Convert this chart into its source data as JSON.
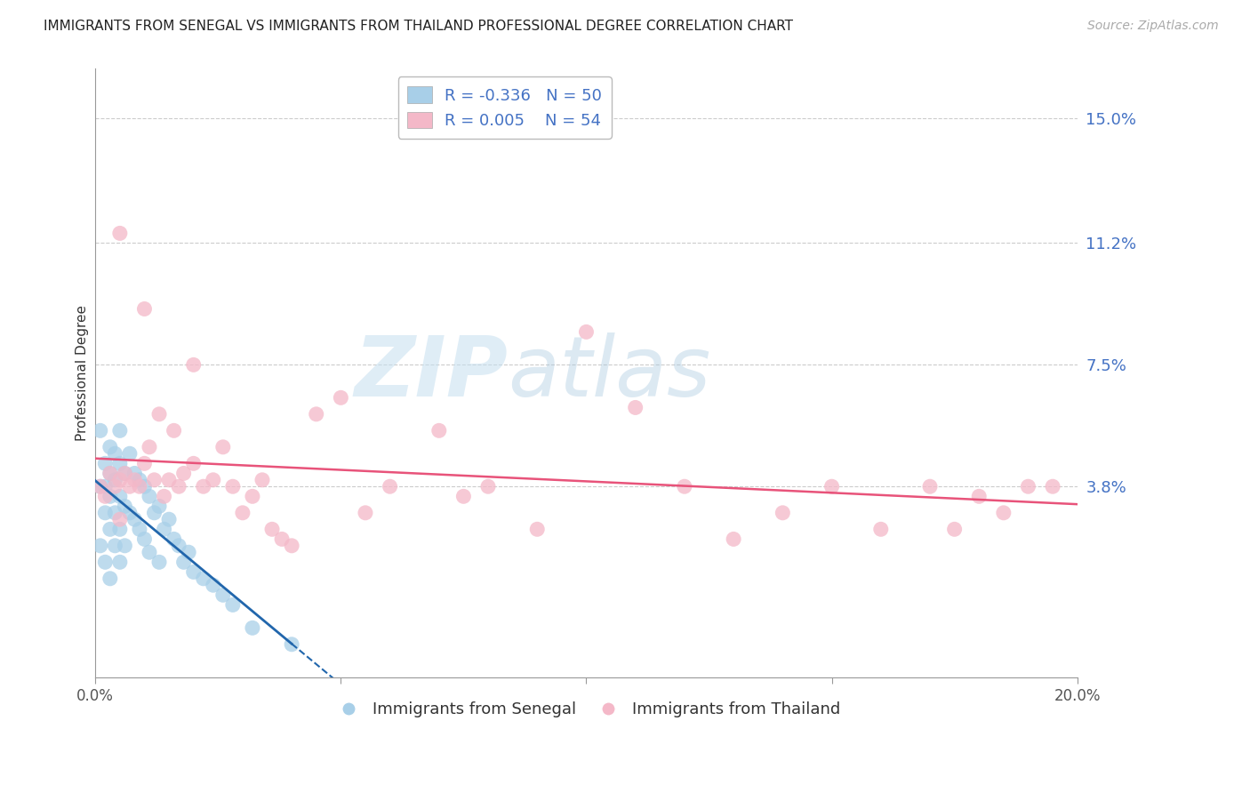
{
  "title": "IMMIGRANTS FROM SENEGAL VS IMMIGRANTS FROM THAILAND PROFESSIONAL DEGREE CORRELATION CHART",
  "source": "Source: ZipAtlas.com",
  "ylabel": "Professional Degree",
  "xlim": [
    0.0,
    0.2
  ],
  "ylim": [
    -0.02,
    0.165
  ],
  "yticks": [
    0.038,
    0.075,
    0.112,
    0.15
  ],
  "ytick_labels": [
    "3.8%",
    "7.5%",
    "11.2%",
    "15.0%"
  ],
  "legend_label1": "Immigrants from Senegal",
  "legend_label2": "Immigrants from Thailand",
  "R1": -0.336,
  "N1": 50,
  "R2": 0.005,
  "N2": 54,
  "color1": "#a8cfe8",
  "color2": "#f4b8c8",
  "trend1_color": "#2166ac",
  "trend2_color": "#e8537a",
  "watermark_zip": "ZIP",
  "watermark_atlas": "atlas",
  "background_color": "#ffffff",
  "senegal_x": [
    0.001,
    0.001,
    0.001,
    0.002,
    0.002,
    0.002,
    0.002,
    0.003,
    0.003,
    0.003,
    0.003,
    0.003,
    0.004,
    0.004,
    0.004,
    0.004,
    0.005,
    0.005,
    0.005,
    0.005,
    0.005,
    0.006,
    0.006,
    0.006,
    0.007,
    0.007,
    0.008,
    0.008,
    0.009,
    0.009,
    0.01,
    0.01,
    0.011,
    0.011,
    0.012,
    0.013,
    0.013,
    0.014,
    0.015,
    0.016,
    0.017,
    0.018,
    0.019,
    0.02,
    0.022,
    0.024,
    0.026,
    0.028,
    0.032,
    0.04
  ],
  "senegal_y": [
    0.055,
    0.038,
    0.02,
    0.045,
    0.038,
    0.03,
    0.015,
    0.05,
    0.042,
    0.035,
    0.025,
    0.01,
    0.048,
    0.04,
    0.03,
    0.02,
    0.055,
    0.045,
    0.035,
    0.025,
    0.015,
    0.042,
    0.032,
    0.02,
    0.048,
    0.03,
    0.042,
    0.028,
    0.04,
    0.025,
    0.038,
    0.022,
    0.035,
    0.018,
    0.03,
    0.032,
    0.015,
    0.025,
    0.028,
    0.022,
    0.02,
    0.015,
    0.018,
    0.012,
    0.01,
    0.008,
    0.005,
    0.002,
    -0.005,
    -0.01
  ],
  "thailand_x": [
    0.001,
    0.002,
    0.003,
    0.004,
    0.005,
    0.005,
    0.006,
    0.007,
    0.008,
    0.009,
    0.01,
    0.011,
    0.012,
    0.013,
    0.014,
    0.015,
    0.016,
    0.017,
    0.018,
    0.02,
    0.022,
    0.024,
    0.026,
    0.028,
    0.03,
    0.032,
    0.034,
    0.036,
    0.038,
    0.04,
    0.045,
    0.05,
    0.055,
    0.06,
    0.07,
    0.075,
    0.08,
    0.09,
    0.1,
    0.11,
    0.12,
    0.13,
    0.14,
    0.15,
    0.16,
    0.17,
    0.175,
    0.18,
    0.185,
    0.19,
    0.005,
    0.01,
    0.02,
    0.195
  ],
  "thailand_y": [
    0.038,
    0.035,
    0.042,
    0.038,
    0.04,
    0.028,
    0.042,
    0.038,
    0.04,
    0.038,
    0.045,
    0.05,
    0.04,
    0.06,
    0.035,
    0.04,
    0.055,
    0.038,
    0.042,
    0.075,
    0.038,
    0.04,
    0.05,
    0.038,
    0.03,
    0.035,
    0.04,
    0.025,
    0.022,
    0.02,
    0.06,
    0.065,
    0.03,
    0.038,
    0.055,
    0.035,
    0.038,
    0.025,
    0.085,
    0.062,
    0.038,
    0.022,
    0.03,
    0.038,
    0.025,
    0.038,
    0.025,
    0.035,
    0.03,
    0.038,
    0.115,
    0.092,
    0.045,
    0.038
  ]
}
